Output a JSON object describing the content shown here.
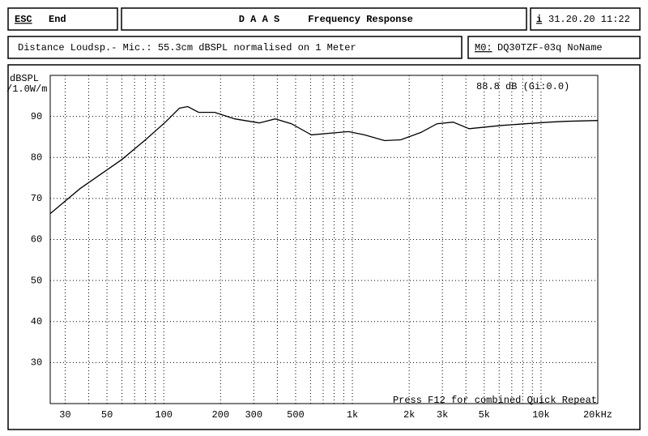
{
  "header": {
    "esc_key": "ESC",
    "esc_label": "End",
    "app": "D A A S",
    "title": "Frequency Response",
    "info_key": "i",
    "datetime": "31.20.20 11:22",
    "measurement": "Distance Loudsp.- Mic.: 55.3cm dBSPL normalised on 1 Meter",
    "memory_key": "M0:",
    "memory_name": "DQ30TZF-03q NoName"
  },
  "chart_data": {
    "type": "line",
    "y_label_1": "dBSPL",
    "y_label_2": "/1.0W/m",
    "annotation": "88.8 dB (Gi:0.0)",
    "footer": "Press F12 for combined Quick Repeat",
    "log_x": true,
    "grid": true,
    "color": "#000000",
    "xlim": [
      25,
      20000
    ],
    "ylim": [
      20,
      100
    ],
    "yticks": [
      30,
      40,
      50,
      60,
      70,
      80,
      90
    ],
    "xticks": [
      30,
      {
        "value": 40,
        "label": null
      },
      50,
      {
        "value": 60,
        "label": null
      },
      {
        "value": 70,
        "label": null
      },
      {
        "value": 80,
        "label": null
      },
      {
        "value": 90,
        "label": null
      },
      100,
      200,
      300,
      {
        "value": 400,
        "label": null
      },
      500,
      {
        "value": 600,
        "label": null
      },
      {
        "value": 700,
        "label": null
      },
      {
        "value": 800,
        "label": null
      },
      {
        "value": 900,
        "label": null
      },
      {
        "value": 1000,
        "label": "1k"
      },
      {
        "value": 2000,
        "label": "2k"
      },
      {
        "value": 3000,
        "label": "3k"
      },
      {
        "value": 4000,
        "label": null
      },
      {
        "value": 5000,
        "label": "5k"
      },
      {
        "value": 6000,
        "label": null
      },
      {
        "value": 7000,
        "label": null
      },
      {
        "value": 8000,
        "label": null
      },
      {
        "value": 9000,
        "label": null
      },
      {
        "value": 10000,
        "label": "10k"
      },
      {
        "value": 20000,
        "label": "20kHz"
      }
    ],
    "x": [
      25,
      36,
      60,
      80,
      102,
      121,
      134,
      153,
      186,
      238,
      321,
      390,
      475,
      606,
      952,
      1158,
      1481,
      1804,
      2310,
      2808,
      3417,
      4160,
      6160,
      8270,
      11140,
      13560,
      20000
    ],
    "values": [
      66.3,
      72.4,
      79.5,
      84.3,
      88.6,
      92.0,
      92.4,
      91.0,
      91.0,
      89.4,
      88.4,
      89.4,
      88.2,
      85.5,
      86.3,
      85.5,
      84.1,
      84.3,
      86.1,
      88.2,
      88.6,
      87.0,
      87.8,
      88.2,
      88.6,
      88.8,
      89.0
    ]
  }
}
